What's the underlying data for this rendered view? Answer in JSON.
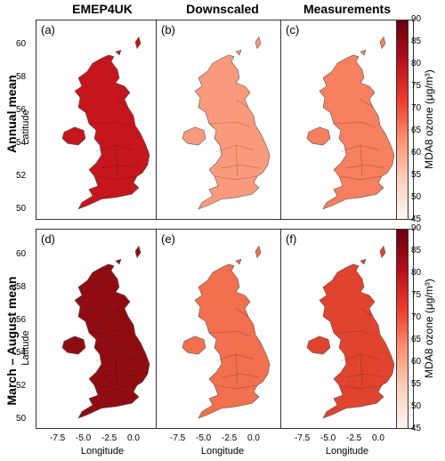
{
  "columns": [
    "EMEP4UK",
    "Downscaled",
    "Measurements"
  ],
  "rows": [
    "Annual mean",
    "March – August mean"
  ],
  "panel_labels": [
    "(a)",
    "(b)",
    "(c)",
    "(d)",
    "(e)",
    "(f)"
  ],
  "y_axis_label": "Latitude",
  "x_axis_label": "Longitude",
  "y_ticks": [
    "60",
    "58",
    "56",
    "54",
    "52",
    "50"
  ],
  "x_ticks": [
    "-7.5",
    "-5.0",
    "-2.5",
    "0.0"
  ],
  "colorbar": {
    "title": "MDA8 ozone (μg/m³)",
    "ticks": [
      "90",
      "85",
      "80",
      "75",
      "70",
      "65",
      "60",
      "55",
      "50",
      "45"
    ],
    "min": 45,
    "max": 90
  },
  "panel_colors": [
    "#c4161c",
    "#f99a7d",
    "#f6805f",
    "#8f0d12",
    "#f2704e",
    "#e0442f"
  ],
  "colors": {
    "shadow": "#3a0000"
  }
}
